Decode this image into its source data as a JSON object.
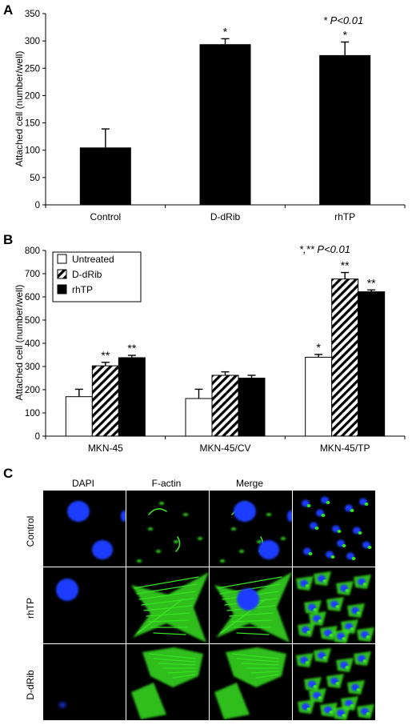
{
  "panelA": {
    "letter": "A",
    "ylabel": "Attached cell (number/well)",
    "significance": "* P<0.01",
    "chart_data": {
      "type": "bar",
      "categories": [
        "Control",
        "D-dRib",
        "rhTP"
      ],
      "values": [
        105,
        294,
        274
      ],
      "errors": [
        34,
        10,
        24
      ],
      "markers": [
        "",
        "*",
        "*"
      ],
      "ylim": [
        0,
        350
      ],
      "yticks": [
        0,
        50,
        100,
        150,
        200,
        250,
        300,
        350
      ],
      "xlabel": "",
      "ylabel": "Attached cell (number/well)",
      "bar_color": "#000000"
    }
  },
  "panelB": {
    "letter": "B",
    "ylabel": "Attached cell (number/well)",
    "significance": "*,** P<0.01",
    "chart_data": {
      "type": "bar",
      "categories": [
        "MKN-45",
        "MKN-45/CV",
        "MKN-45/TP"
      ],
      "series": [
        {
          "name": "Untreated",
          "values": [
            170,
            162,
            340
          ],
          "errors": [
            32,
            40,
            12
          ],
          "markers": [
            "",
            "",
            "*"
          ],
          "fill": "white"
        },
        {
          "name": "D-dRib",
          "values": [
            303,
            262,
            677
          ],
          "errors": [
            15,
            15,
            28
          ],
          "markers": [
            "**",
            "",
            "**"
          ],
          "fill": "hatch"
        },
        {
          "name": "rhTP",
          "values": [
            338,
            250,
            622
          ],
          "errors": [
            10,
            12,
            8
          ],
          "markers": [
            "**",
            "",
            "**"
          ],
          "fill": "black"
        }
      ],
      "ylim": [
        0,
        800
      ],
      "yticks": [
        0,
        100,
        200,
        300,
        400,
        500,
        600,
        700,
        800
      ],
      "ylabel": "Attached cell (number/well)",
      "legend": "top-left"
    }
  },
  "panelC": {
    "letter": "C",
    "columns": [
      "DAPI",
      "F-actin",
      "Merge",
      ""
    ],
    "rows": [
      "Control",
      "rhTP",
      "D-dRib"
    ],
    "colors": {
      "dapi": "#1a3cff",
      "actin": "#39e024",
      "background": "#000000"
    }
  }
}
